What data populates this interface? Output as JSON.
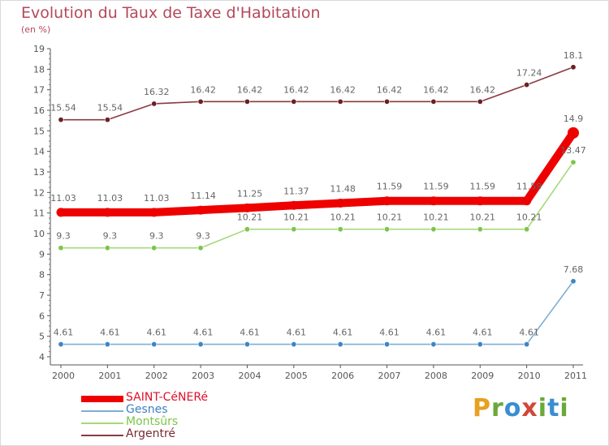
{
  "header": {
    "title": "Evolution du Taux de Taxe d'Habitation",
    "subtitle": "(en %)"
  },
  "brand": {
    "letters": [
      "P",
      "r",
      "o",
      "x",
      "i",
      "t",
      "i"
    ],
    "colors": [
      "#e8a020",
      "#6aa83a",
      "#3a8ed0",
      "#d2463a",
      "#6aa83a",
      "#3a8ed0",
      "#6aa83a"
    ]
  },
  "chart_data": {
    "type": "line",
    "title": "Evolution du Taux de Taxe d'Habitation",
    "ylabel": "(en %)",
    "xlabel": "",
    "ylim": [
      4,
      19
    ],
    "yticks": [
      4,
      5,
      6,
      7,
      8,
      9,
      10,
      11,
      12,
      13,
      14,
      15,
      16,
      17,
      18,
      19
    ],
    "categories": [
      "2000",
      "2001",
      "2002",
      "2003",
      "2004",
      "2005",
      "2006",
      "2007",
      "2008",
      "2009",
      "2010",
      "2011"
    ],
    "series": [
      {
        "name": "SAINT-CéNERé",
        "color": "#ee0000",
        "point_color": "#ee0000",
        "values": [
          11.03,
          11.03,
          11.03,
          11.14,
          11.25,
          11.37,
          11.48,
          11.59,
          11.59,
          11.59,
          11.59,
          14.9
        ],
        "labels": [
          "11.03",
          "11.03",
          "11.03",
          "11.14",
          "11.25",
          "11.37",
          "11.48",
          "11.59",
          "11.59",
          "11.59",
          "11.59",
          "14.9"
        ]
      },
      {
        "name": "Gesnes",
        "color": "#7eaed4",
        "point_color": "#3f84c4",
        "values": [
          4.61,
          4.61,
          4.61,
          4.61,
          4.61,
          4.61,
          4.61,
          4.61,
          4.61,
          4.61,
          4.61,
          7.68
        ],
        "labels": [
          "4.61",
          "4.61",
          "4.61",
          "4.61",
          "4.61",
          "4.61",
          "4.61",
          "4.61",
          "4.61",
          "4.61",
          "4.61",
          "7.68"
        ]
      },
      {
        "name": "Montsûrs",
        "color": "#a6d87a",
        "point_color": "#7cc54a",
        "values": [
          9.3,
          9.3,
          9.3,
          9.3,
          10.21,
          10.21,
          10.21,
          10.21,
          10.21,
          10.21,
          10.21,
          13.47
        ],
        "labels": [
          "9.3",
          "9.3",
          "9.3",
          "9.3",
          "10.21",
          "10.21",
          "10.21",
          "10.21",
          "10.21",
          "10.21",
          "10.21",
          "13.47"
        ]
      },
      {
        "name": "Argentré",
        "color": "#8a3a40",
        "point_color": "#6b1f26",
        "values": [
          15.54,
          15.54,
          16.32,
          16.42,
          16.42,
          16.42,
          16.42,
          16.42,
          16.42,
          16.42,
          17.24,
          18.1
        ],
        "labels": [
          "15.54",
          "15.54",
          "16.32",
          "16.42",
          "16.42",
          "16.42",
          "16.42",
          "16.42",
          "16.42",
          "16.42",
          "17.24",
          "18.1"
        ]
      }
    ],
    "grid": false,
    "legend_position": "bottom-left"
  }
}
